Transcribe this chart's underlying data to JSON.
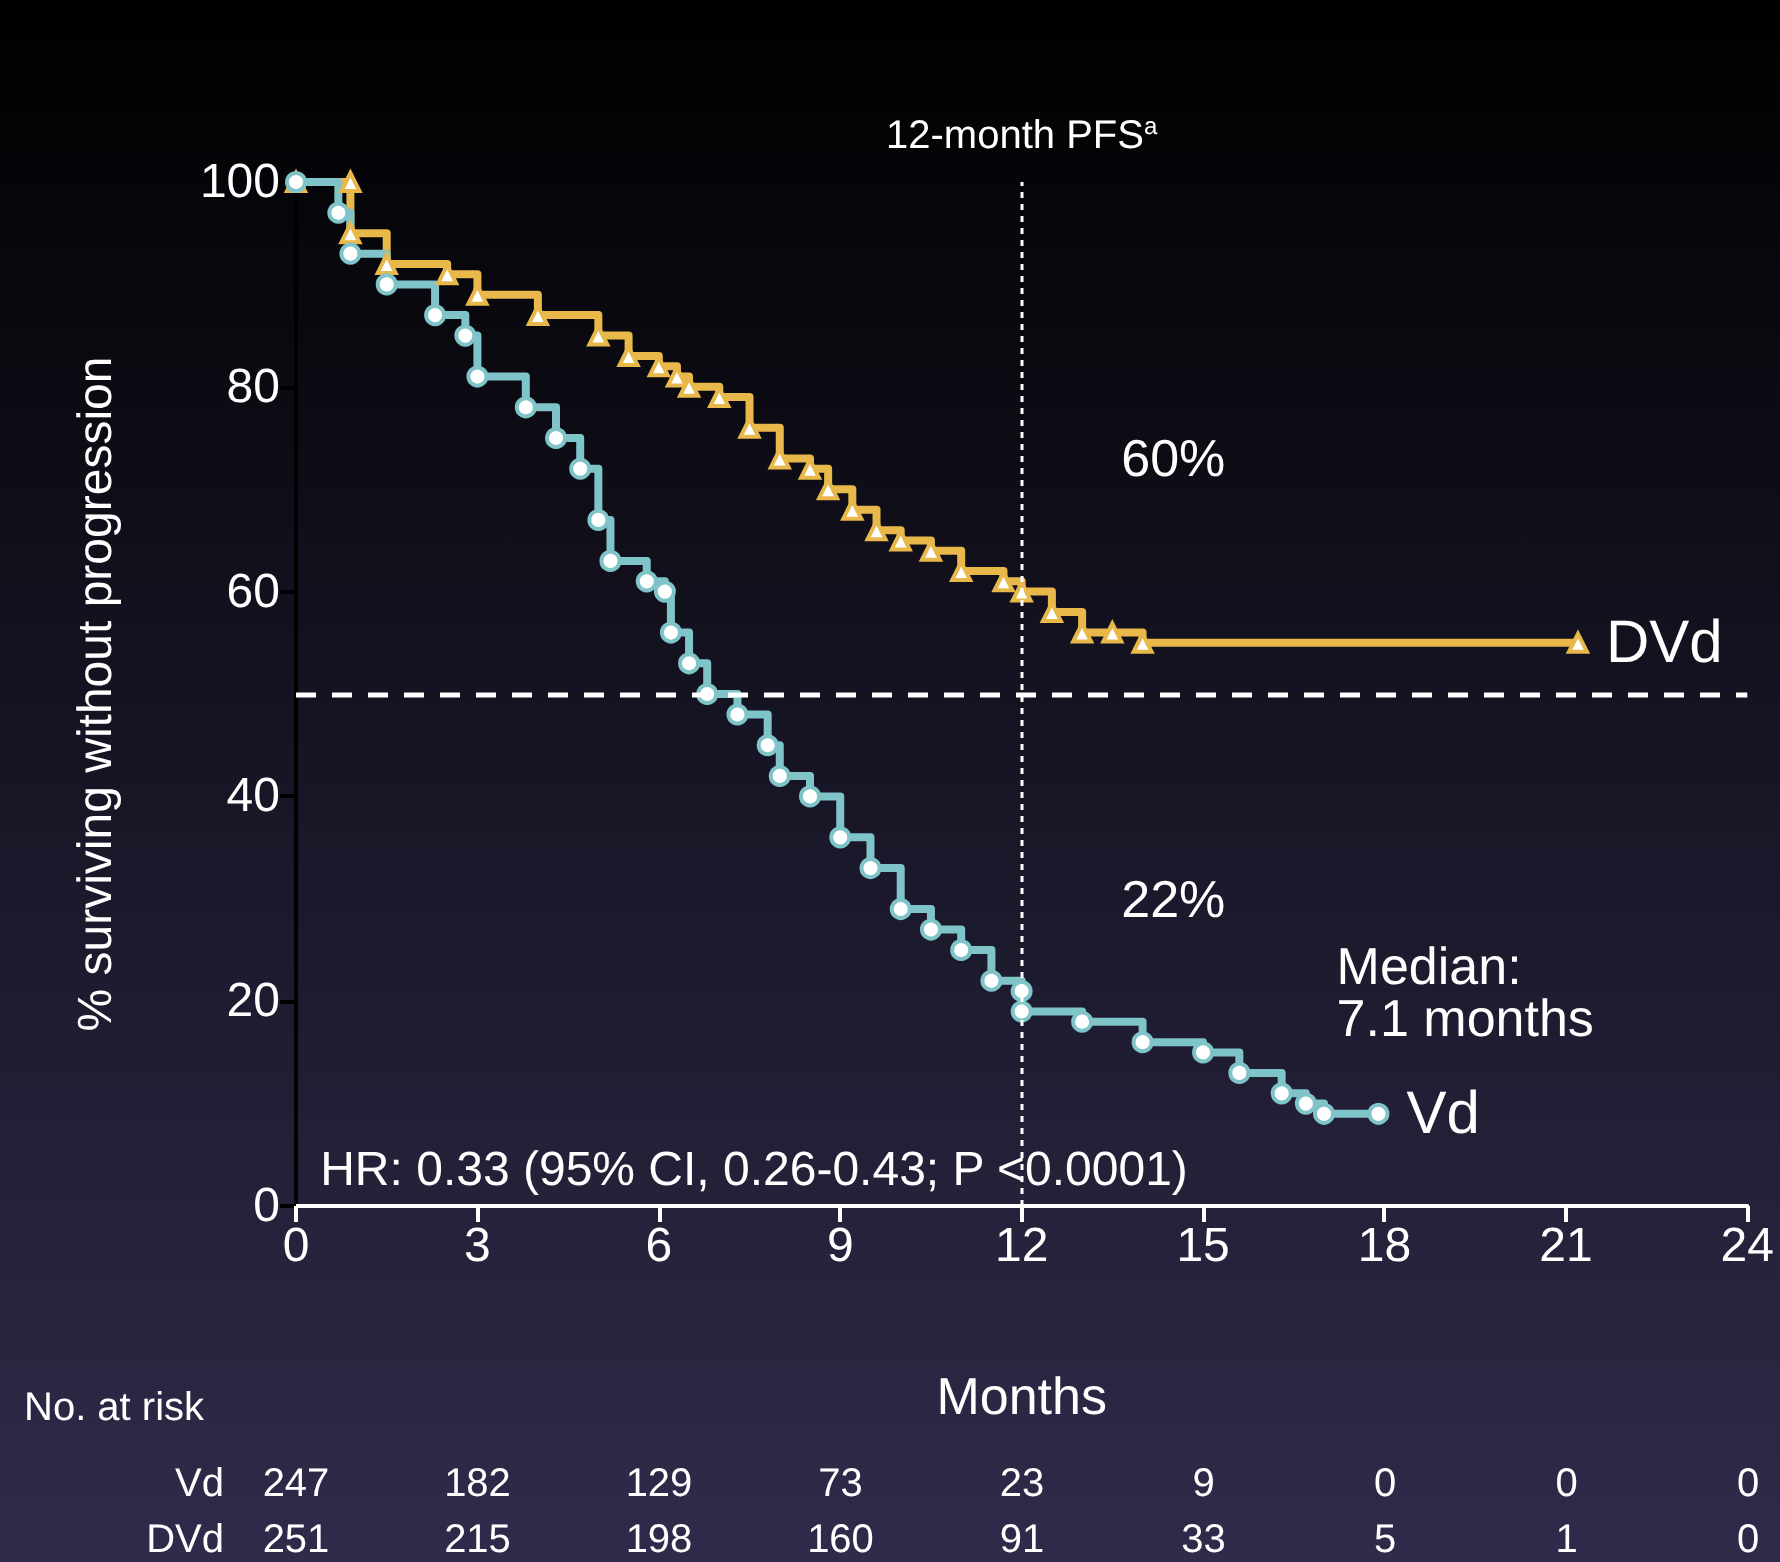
{
  "chart_data": {
    "type": "step",
    "xlabel": "Months",
    "ylabel": "% surviving without progression",
    "xlim": [
      0,
      24
    ],
    "xticks": [
      0,
      3,
      6,
      9,
      12,
      15,
      18,
      21,
      24
    ],
    "ylim": [
      0,
      100
    ],
    "yticks": [
      0,
      20,
      40,
      60,
      80,
      100
    ],
    "grid": false,
    "legend": false,
    "line_style": "solid",
    "series": [
      {
        "name": "DVd",
        "color": "#e8b84a",
        "marker": "triangle",
        "x": [
          0,
          0.9,
          0.9,
          1.5,
          2.5,
          3.0,
          4.0,
          5.0,
          5.5,
          6.0,
          6.3,
          6.5,
          7.0,
          7.5,
          8.0,
          8.5,
          8.8,
          9.2,
          9.6,
          10.0,
          10.5,
          11.0,
          11.7,
          12.0,
          12.5,
          13.0,
          13.5,
          14.0,
          21.2
        ],
        "values": [
          100,
          100,
          95,
          92,
          91,
          89,
          87,
          85,
          83,
          82,
          81,
          80,
          79,
          76,
          73,
          72,
          70,
          68,
          66,
          65,
          64,
          62,
          61,
          60,
          58,
          56,
          56,
          55,
          55
        ]
      },
      {
        "name": "Vd",
        "color": "#7fc4c8",
        "marker": "circle",
        "x": [
          0,
          0.7,
          0.9,
          1.5,
          2.3,
          2.8,
          3.0,
          3.8,
          4.3,
          4.7,
          5.0,
          5.2,
          5.8,
          6.1,
          6.2,
          6.5,
          6.8,
          7.3,
          7.8,
          8.0,
          8.5,
          9.0,
          9.5,
          10.0,
          10.5,
          11.0,
          11.5,
          12.0,
          12.0,
          13.0,
          14.0,
          15.0,
          15.6,
          16.3,
          16.7,
          17.0,
          17.9
        ],
        "values": [
          100,
          97,
          93,
          90,
          87,
          85,
          81,
          78,
          75,
          72,
          67,
          63,
          61,
          60,
          56,
          53,
          50,
          48,
          45,
          42,
          40,
          36,
          33,
          29,
          27,
          25,
          22,
          21,
          19,
          18,
          16,
          15,
          13,
          11,
          10,
          9,
          9
        ]
      }
    ],
    "ref_lines": [
      {
        "axis": "y",
        "value": 50,
        "label": null,
        "color": "#ffffff",
        "line_style": "dashed"
      },
      {
        "axis": "x",
        "value": 12,
        "label": "12-month PFS$^{a}$",
        "color": "#ffffff",
        "line_style": "dotted"
      }
    ],
    "annotations": [
      "60%",
      "22%",
      "Median:\n7.1 months",
      "HR: 0.33 (95% CI, 0.26-0.43; P <0.0001)",
      "No. at risk",
      "Vd 247 182 129 73 23 9 0 0 0",
      "DVd 251 215 198 160 91 33 5 1 0"
    ]
  }
}
